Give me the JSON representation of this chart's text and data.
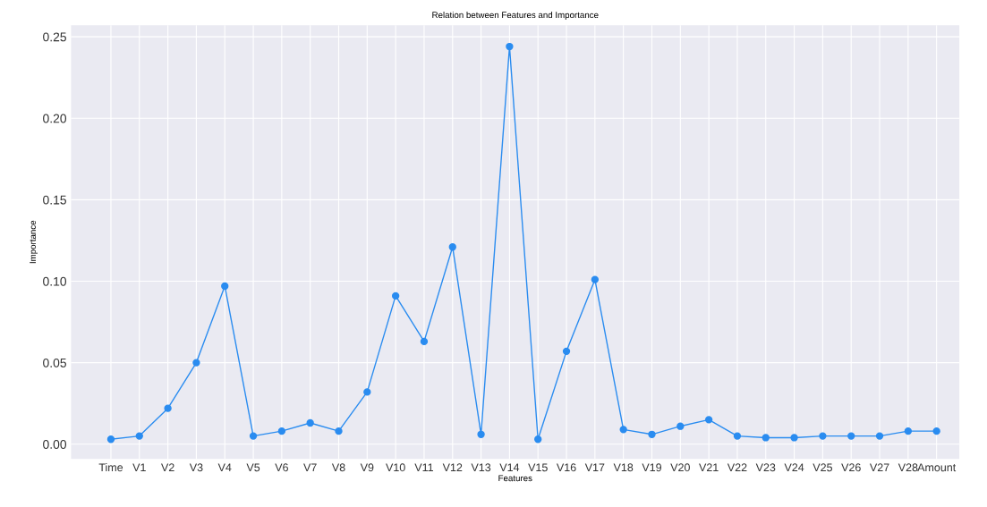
{
  "chart_data": {
    "type": "line",
    "title": "Relation between Features and Importance",
    "xlabel": "Features",
    "ylabel": "Importance",
    "categories": [
      "Time",
      "V1",
      "V2",
      "V3",
      "V4",
      "V5",
      "V6",
      "V7",
      "V8",
      "V9",
      "V10",
      "V11",
      "V12",
      "V13",
      "V14",
      "V15",
      "V16",
      "V17",
      "V18",
      "V19",
      "V20",
      "V21",
      "V22",
      "V23",
      "V24",
      "V25",
      "V26",
      "V27",
      "V28",
      "Amount"
    ],
    "series": [
      {
        "color": "#2a8cf0",
        "values": [
          0.003,
          0.005,
          0.022,
          0.05,
          0.097,
          0.005,
          0.008,
          0.013,
          0.008,
          0.032,
          0.091,
          0.063,
          0.121,
          0.006,
          0.244,
          0.003,
          0.057,
          0.101,
          0.009,
          0.006,
          0.011,
          0.015,
          0.005,
          0.004,
          0.004,
          0.005,
          0.005,
          0.005,
          0.008,
          0.008
        ]
      }
    ],
    "ylim": [
      -0.009,
      0.257
    ],
    "yticks": [
      {
        "value": 0,
        "label": "0.00"
      },
      0.05,
      {
        "value": 0.1,
        "label": "0.10"
      },
      0.15,
      {
        "value": 0.2,
        "label": "0.20"
      },
      0.25
    ],
    "grid": true,
    "marker": "circle",
    "line_style": "solid"
  }
}
